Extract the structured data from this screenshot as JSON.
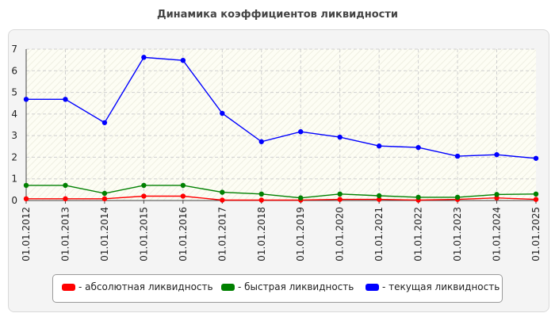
{
  "chart_data": {
    "type": "line",
    "title": "Динамика коэффициентов ликвидности",
    "categories": [
      "01.01.2012",
      "01.01.2013",
      "01.01.2014",
      "01.01.2015",
      "01.01.2016",
      "01.01.2017",
      "01.01.2018",
      "01.01.2019",
      "01.01.2020",
      "01.01.2021",
      "01.01.2022",
      "01.01.2023",
      "01.01.2024",
      "01.01.2025"
    ],
    "ylim": [
      0,
      7
    ],
    "yticks": [
      "0",
      "1",
      "2",
      "3",
      "4",
      "5",
      "6",
      "7"
    ],
    "grid": true,
    "legend_position": "bottom",
    "series": [
      {
        "name": "- абсолютная ликвидность",
        "color": "#ff0000",
        "values": [
          0.08,
          0.08,
          0.08,
          0.2,
          0.2,
          0.02,
          0.02,
          0.02,
          0.05,
          0.05,
          0.02,
          0.05,
          0.12,
          0.05
        ]
      },
      {
        "name": "- быстрая ликвидность",
        "color": "#008000",
        "values": [
          0.7,
          0.7,
          0.33,
          0.7,
          0.7,
          0.38,
          0.3,
          0.12,
          0.3,
          0.22,
          0.15,
          0.15,
          0.28,
          0.3
        ]
      },
      {
        "name": "- текущая ликвидность",
        "color": "#0000ff",
        "values": [
          4.68,
          4.68,
          3.6,
          6.62,
          6.48,
          4.03,
          2.72,
          3.18,
          2.93,
          2.52,
          2.45,
          2.05,
          2.12,
          1.95
        ]
      }
    ]
  }
}
